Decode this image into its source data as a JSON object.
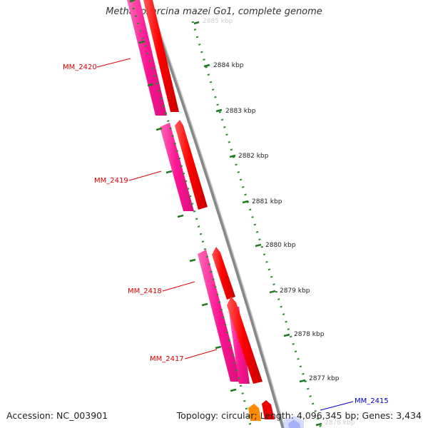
{
  "title": "Methanosarcina mazei Go1, complete genome",
  "footer": {
    "accession": "Accession: NC_003901",
    "summary": "Topology: circular; Length: 4,096,345 bp; Genes: 3,434"
  },
  "colors": {
    "forward_gene": "#ff0000",
    "reverse_gene": "#ff1493",
    "gene_label_red": "#dd0000",
    "gene_label_blue": "#0000cc",
    "tick": "#228b22",
    "backbone": "#808080"
  },
  "kbp_labels": [
    "2885 kbp",
    "2884 kbp",
    "2883 kbp",
    "2882 kbp",
    "2881 kbp",
    "2880 kbp",
    "2879 kbp",
    "2878 kbp",
    "2877 kbp",
    "2876 kbp"
  ],
  "gene_labels": [
    "MM_2420",
    "MM_2419",
    "MM_2418",
    "MM_2417",
    "MM_2415"
  ]
}
